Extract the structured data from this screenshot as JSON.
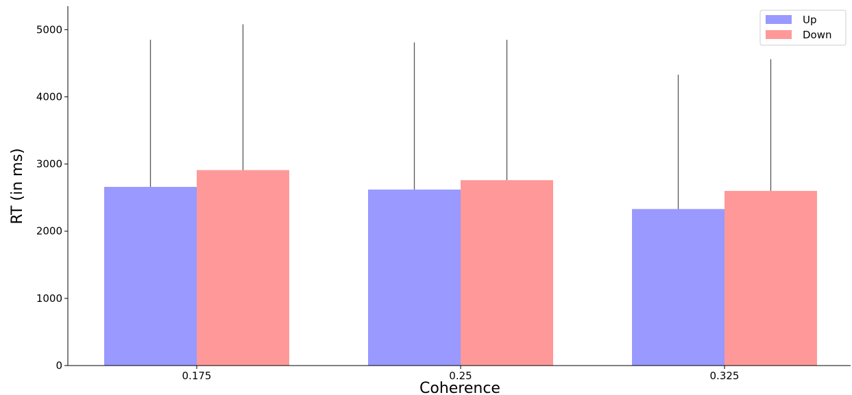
{
  "chart_data": {
    "type": "bar",
    "title": "",
    "xlabel": "Coherence",
    "ylabel": "RT (in ms)",
    "categories": [
      "0.175",
      "0.25",
      "0.325"
    ],
    "ylim": [
      0,
      5350
    ],
    "yticks": [
      "0",
      "1000",
      "2000",
      "3000",
      "4000",
      "5000"
    ],
    "grid": false,
    "legend_position": "top-right",
    "series": [
      {
        "name": "Up",
        "color": "#9999ff",
        "values": [
          2660,
          2620,
          2330
        ],
        "error": [
          2190,
          2190,
          2000
        ]
      },
      {
        "name": "Down",
        "color": "#ff9999",
        "values": [
          2910,
          2760,
          2600
        ],
        "error": [
          2170,
          2090,
          1960
        ]
      }
    ]
  }
}
